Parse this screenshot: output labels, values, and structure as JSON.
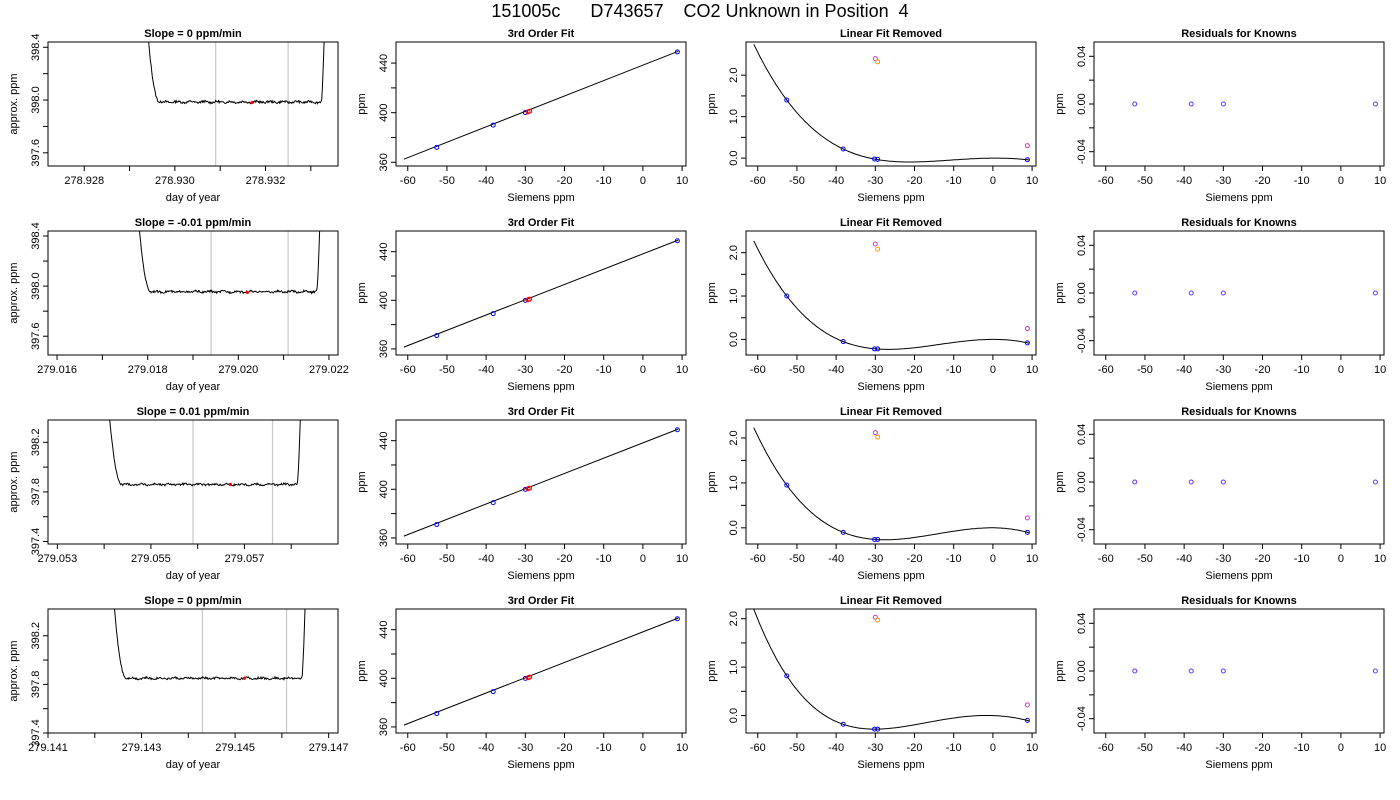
{
  "figure": {
    "title": "151005c      D743657    CO2 Unknown in Position  4"
  },
  "chart_data": [
    {
      "type": "line",
      "title": "Slope =  0  ppm/min",
      "xlabel": "day of year",
      "ylabel": "approx. ppm",
      "xlim": [
        278.9272,
        278.9336
      ],
      "ylim": [
        397.5,
        398.44
      ],
      "xticks": [
        278.928,
        278.93,
        278.932
      ],
      "xtick_labels": [
        "278.928",
        "278.930",
        "278.932"
      ],
      "xtick_minor": [
        278.929,
        278.931,
        278.933
      ],
      "yticks": [
        397.6,
        398.0,
        398.4
      ],
      "ytick_labels": [
        "397.6",
        "398.0",
        "398.4"
      ],
      "ytick_minor": [
        397.8,
        398.2
      ],
      "vlines": [
        278.9309,
        278.9325
      ],
      "trace": {
        "start": 278.9294,
        "end": 278.9333,
        "baseline": 397.985,
        "noise": 0.008,
        "entry_top": 398.5,
        "exit_top": 398.5
      },
      "red_point": {
        "x": 278.9317,
        "y": 397.98
      }
    },
    {
      "type": "scatter",
      "title": "3rd Order Fit",
      "xlabel": "Siemens ppm",
      "ylabel": "ppm",
      "xlim": [
        -63,
        11
      ],
      "ylim": [
        357,
        457
      ],
      "xticks": [
        -60,
        -50,
        -40,
        -30,
        -20,
        -10,
        0,
        10
      ],
      "yticks": [
        360,
        400,
        440
      ],
      "ytick_minor": [
        380,
        420
      ],
      "line": {
        "x": [
          -61,
          9
        ],
        "y": [
          362.5,
          449.5
        ]
      },
      "points": [
        {
          "x": -52.6,
          "y": 372,
          "color": "blue"
        },
        {
          "x": -38.2,
          "y": 390,
          "color": "blue"
        },
        {
          "x": -30,
          "y": 400.1,
          "color": "blue"
        },
        {
          "x": -29.3,
          "y": 400.6,
          "color": "red"
        },
        {
          "x": -28.9,
          "y": 401.2,
          "color": "red"
        },
        {
          "x": 8.8,
          "y": 449,
          "color": "blue"
        }
      ]
    },
    {
      "type": "scatter",
      "title": "Linear Fit Removed",
      "xlabel": "Siemens ppm",
      "ylabel": "ppm",
      "xlim": [
        -63,
        11
      ],
      "ylim": [
        -0.19,
        2.8
      ],
      "xticks": [
        -60,
        -50,
        -40,
        -30,
        -20,
        -10,
        0,
        10
      ],
      "yticks": [
        0.0,
        1.0,
        2.0
      ],
      "ytick_labels": [
        "0.0",
        "1.0",
        "2.0"
      ],
      "ytick_minor": [
        0.5,
        1.5
      ],
      "curve": {
        "a": 0.0,
        "roots": [
          -52.6,
          -38.2,
          -29.9,
          8.8
        ],
        "x": [
          -61,
          9.2
        ],
        "y_at_knowns": [
          1.4,
          0.22,
          -0.03,
          -0.04
        ]
      },
      "points": [
        {
          "x": -52.6,
          "y": 1.4,
          "color": "blue"
        },
        {
          "x": -38.2,
          "y": 0.22,
          "color": "blue"
        },
        {
          "x": -30.2,
          "y": -0.02,
          "color": "blue"
        },
        {
          "x": -29.4,
          "y": -0.03,
          "color": "blue"
        },
        {
          "x": 8.8,
          "y": -0.04,
          "color": "blue"
        },
        {
          "x": -30,
          "y": 2.4,
          "color": "magenta"
        },
        {
          "x": -29.4,
          "y": 2.32,
          "color": "orange"
        },
        {
          "x": 8.8,
          "y": 0.3,
          "color": "magenta"
        }
      ]
    },
    {
      "type": "scatter",
      "title": "Residuals for Knowns",
      "xlabel": "Siemens ppm",
      "ylabel": "ppm",
      "xlim": [
        -63,
        11
      ],
      "ylim": [
        -0.052,
        0.052
      ],
      "xticks": [
        -60,
        -50,
        -40,
        -30,
        -20,
        -10,
        0,
        10
      ],
      "yticks": [
        -0.04,
        0.0,
        0.04
      ],
      "ytick_labels": [
        "-0.04",
        "0.00",
        "0.04"
      ],
      "ytick_minor": [
        -0.02,
        0.02
      ],
      "points": [
        {
          "x": -52.6,
          "y": 0,
          "color": "purple"
        },
        {
          "x": -38.2,
          "y": 0,
          "color": "purple"
        },
        {
          "x": -30,
          "y": 0,
          "color": "purple"
        },
        {
          "x": 8.8,
          "y": 0,
          "color": "purple"
        }
      ]
    },
    {
      "type": "line",
      "title": "Slope =  -0.01  ppm/min",
      "xlabel": "day of year",
      "ylabel": "approx. ppm",
      "xlim": [
        279.0158,
        279.0222
      ],
      "ylim": [
        397.45,
        398.44
      ],
      "xticks": [
        279.016,
        279.018,
        279.02,
        279.022
      ],
      "xtick_labels": [
        "279.016",
        "279.018",
        "279.020",
        "279.022"
      ],
      "xtick_minor": [
        279.017,
        279.019,
        279.021
      ],
      "yticks": [
        397.6,
        398.0,
        398.4
      ],
      "ytick_labels": [
        "397.6",
        "398.0",
        "398.4"
      ],
      "ytick_minor": [
        397.8,
        398.2
      ],
      "vlines": [
        279.0194,
        279.0211
      ],
      "trace": {
        "start": 279.0178,
        "end": 279.0218,
        "baseline": 397.955,
        "noise": 0.008,
        "entry_top": 398.5,
        "exit_top": 398.5
      },
      "red_point": {
        "x": 279.0202,
        "y": 397.95
      }
    },
    {
      "type": "scatter",
      "title": "3rd Order Fit",
      "xlabel": "Siemens ppm",
      "ylabel": "ppm",
      "xlim": [
        -63,
        11
      ],
      "ylim": [
        355,
        457
      ],
      "xticks": [
        -60,
        -50,
        -40,
        -30,
        -20,
        -10,
        0,
        10
      ],
      "yticks": [
        360,
        400,
        440
      ],
      "ytick_minor": [
        380,
        420
      ],
      "line": {
        "x": [
          -61,
          9
        ],
        "y": [
          361.5,
          449.5
        ]
      },
      "points": [
        {
          "x": -52.6,
          "y": 371,
          "color": "blue"
        },
        {
          "x": -38.2,
          "y": 389,
          "color": "blue"
        },
        {
          "x": -30,
          "y": 399.9,
          "color": "blue"
        },
        {
          "x": -29.3,
          "y": 400.4,
          "color": "red"
        },
        {
          "x": -28.9,
          "y": 401,
          "color": "red"
        },
        {
          "x": 8.8,
          "y": 449,
          "color": "blue"
        }
      ]
    },
    {
      "type": "scatter",
      "title": "Linear Fit Removed",
      "xlabel": "Siemens ppm",
      "ylabel": "ppm",
      "xlim": [
        -63,
        11
      ],
      "ylim": [
        -0.36,
        2.5
      ],
      "xticks": [
        -60,
        -50,
        -40,
        -30,
        -20,
        -10,
        0,
        10
      ],
      "yticks": [
        0.0,
        1.0,
        2.0
      ],
      "ytick_labels": [
        "0.0",
        "1.0",
        "2.0"
      ],
      "ytick_minor": [
        0.5,
        1.5
      ],
      "curve": {
        "a": 0.0,
        "roots": [],
        "x": [
          -61,
          9.2
        ],
        "y_at_knowns": [
          1.0,
          -0.05,
          -0.22,
          -0.08
        ]
      },
      "points": [
        {
          "x": -52.6,
          "y": 1.0,
          "color": "blue"
        },
        {
          "x": -38.2,
          "y": -0.05,
          "color": "blue"
        },
        {
          "x": -30.2,
          "y": -0.22,
          "color": "blue"
        },
        {
          "x": -29.4,
          "y": -0.22,
          "color": "blue"
        },
        {
          "x": 8.8,
          "y": -0.08,
          "color": "blue"
        },
        {
          "x": -30,
          "y": 2.2,
          "color": "magenta"
        },
        {
          "x": -29.4,
          "y": 2.08,
          "color": "orange"
        },
        {
          "x": 8.8,
          "y": 0.25,
          "color": "magenta"
        }
      ]
    },
    {
      "type": "scatter",
      "title": "Residuals for Knowns",
      "xlabel": "Siemens ppm",
      "ylabel": "ppm",
      "xlim": [
        -63,
        11
      ],
      "ylim": [
        -0.052,
        0.052
      ],
      "xticks": [
        -60,
        -50,
        -40,
        -30,
        -20,
        -10,
        0,
        10
      ],
      "yticks": [
        -0.04,
        0.0,
        0.04
      ],
      "ytick_labels": [
        "-0.04",
        "0.00",
        "0.04"
      ],
      "ytick_minor": [
        -0.02,
        0.02
      ],
      "points": [
        {
          "x": -52.6,
          "y": 0,
          "color": "purple"
        },
        {
          "x": -38.2,
          "y": 0,
          "color": "purple"
        },
        {
          "x": -30,
          "y": 0,
          "color": "purple"
        },
        {
          "x": 8.8,
          "y": 0,
          "color": "purple"
        }
      ]
    },
    {
      "type": "line",
      "title": "Slope =  0.01  ppm/min",
      "xlabel": "day of year",
      "ylabel": "approx. ppm",
      "xlim": [
        279.0528,
        279.059
      ],
      "ylim": [
        397.38,
        398.38
      ],
      "xticks": [
        279.053,
        279.055,
        279.057
      ],
      "xtick_labels": [
        "279.053",
        "279.055",
        "279.057"
      ],
      "xtick_minor": [
        279.054,
        279.056,
        279.058
      ],
      "yticks": [
        397.4,
        397.8,
        398.2
      ],
      "ytick_labels": [
        "397.4",
        "397.8",
        "398.2"
      ],
      "ytick_minor": [
        397.6,
        398.0
      ],
      "vlines": [
        279.0559,
        279.0576
      ],
      "trace": {
        "start": 279.0541,
        "end": 279.0582,
        "baseline": 397.86,
        "noise": 0.008,
        "entry_top": 398.45,
        "exit_top": 398.45
      },
      "red_point": {
        "x": 279.0567,
        "y": 397.86
      }
    },
    {
      "type": "scatter",
      "title": "3rd Order Fit",
      "xlabel": "Siemens ppm",
      "ylabel": "ppm",
      "xlim": [
        -63,
        11
      ],
      "ylim": [
        355,
        457
      ],
      "xticks": [
        -60,
        -50,
        -40,
        -30,
        -20,
        -10,
        0,
        10
      ],
      "yticks": [
        360,
        400,
        440
      ],
      "ytick_minor": [
        380,
        420
      ],
      "line": {
        "x": [
          -61,
          9
        ],
        "y": [
          361.5,
          449.5
        ]
      },
      "points": [
        {
          "x": -52.6,
          "y": 371,
          "color": "blue"
        },
        {
          "x": -38.2,
          "y": 389,
          "color": "blue"
        },
        {
          "x": -30,
          "y": 399.9,
          "color": "blue"
        },
        {
          "x": -29.3,
          "y": 400.4,
          "color": "red"
        },
        {
          "x": -28.9,
          "y": 401,
          "color": "red"
        },
        {
          "x": 8.8,
          "y": 449,
          "color": "blue"
        }
      ]
    },
    {
      "type": "scatter",
      "title": "Linear Fit Removed",
      "xlabel": "Siemens ppm",
      "ylabel": "ppm",
      "xlim": [
        -63,
        11
      ],
      "ylim": [
        -0.36,
        2.4
      ],
      "xticks": [
        -60,
        -50,
        -40,
        -30,
        -20,
        -10,
        0,
        10
      ],
      "yticks": [
        0.0,
        1.0,
        2.0
      ],
      "ytick_labels": [
        "0.0",
        "1.0",
        "2.0"
      ],
      "ytick_minor": [
        0.5,
        1.5
      ],
      "curve": {
        "a": 0.0,
        "roots": [],
        "x": [
          -61,
          9.2
        ],
        "y_at_knowns": [
          0.95,
          -0.1,
          -0.26,
          -0.1
        ]
      },
      "points": [
        {
          "x": -52.6,
          "y": 0.95,
          "color": "blue"
        },
        {
          "x": -38.2,
          "y": -0.1,
          "color": "blue"
        },
        {
          "x": -30.2,
          "y": -0.26,
          "color": "blue"
        },
        {
          "x": -29.4,
          "y": -0.26,
          "color": "blue"
        },
        {
          "x": 8.8,
          "y": -0.1,
          "color": "blue"
        },
        {
          "x": -30,
          "y": 2.12,
          "color": "magenta"
        },
        {
          "x": -29.4,
          "y": 2.02,
          "color": "orange"
        },
        {
          "x": 8.8,
          "y": 0.22,
          "color": "magenta"
        }
      ]
    },
    {
      "type": "scatter",
      "title": "Residuals for Knowns",
      "xlabel": "Siemens ppm",
      "ylabel": "ppm",
      "xlim": [
        -63,
        11
      ],
      "ylim": [
        -0.052,
        0.052
      ],
      "xticks": [
        -60,
        -50,
        -40,
        -30,
        -20,
        -10,
        0,
        10
      ],
      "yticks": [
        -0.04,
        0.0,
        0.04
      ],
      "ytick_labels": [
        "-0.04",
        "0.00",
        "0.04"
      ],
      "ytick_minor": [
        -0.02,
        0.02
      ],
      "points": [
        {
          "x": -52.6,
          "y": 0,
          "color": "purple"
        },
        {
          "x": -38.2,
          "y": 0,
          "color": "purple"
        },
        {
          "x": -30,
          "y": 0,
          "color": "purple"
        },
        {
          "x": 8.8,
          "y": 0,
          "color": "purple"
        }
      ]
    },
    {
      "type": "line",
      "title": "Slope =  0  ppm/min",
      "xlabel": "day of year",
      "ylabel": "approx. ppm",
      "xlim": [
        279.141,
        279.1472
      ],
      "ylim": [
        397.4,
        398.42
      ],
      "xticks": [
        279.141,
        279.143,
        279.145,
        279.147
      ],
      "xtick_labels": [
        "279.141",
        "279.143",
        "279.145",
        "279.147"
      ],
      "xtick_minor": [
        279.142,
        279.144,
        279.146
      ],
      "yticks": [
        397.4,
        397.8,
        398.2
      ],
      "ytick_labels": [
        "397.4",
        "397.8",
        "398.2"
      ],
      "ytick_minor": [
        397.6,
        398.0
      ],
      "vlines": [
        279.1443,
        279.1461
      ],
      "trace": {
        "start": 279.1424,
        "end": 279.1465,
        "baseline": 397.85,
        "noise": 0.008,
        "entry_top": 398.5,
        "exit_top": 398.5
      },
      "red_point": {
        "x": 279.1452,
        "y": 397.85
      }
    },
    {
      "type": "scatter",
      "title": "3rd Order Fit",
      "xlabel": "Siemens ppm",
      "ylabel": "ppm",
      "xlim": [
        -63,
        11
      ],
      "ylim": [
        355,
        457
      ],
      "xticks": [
        -60,
        -50,
        -40,
        -30,
        -20,
        -10,
        0,
        10
      ],
      "yticks": [
        360,
        400,
        440
      ],
      "ytick_minor": [
        380,
        420
      ],
      "line": {
        "x": [
          -61,
          9
        ],
        "y": [
          361.5,
          449.5
        ]
      },
      "points": [
        {
          "x": -52.6,
          "y": 371,
          "color": "blue"
        },
        {
          "x": -38.2,
          "y": 389,
          "color": "blue"
        },
        {
          "x": -30,
          "y": 399.9,
          "color": "blue"
        },
        {
          "x": -29.3,
          "y": 400.4,
          "color": "red"
        },
        {
          "x": -28.9,
          "y": 401,
          "color": "red"
        },
        {
          "x": 8.8,
          "y": 449,
          "color": "blue"
        }
      ]
    },
    {
      "type": "scatter",
      "title": "Linear Fit Removed",
      "xlabel": "Siemens ppm",
      "ylabel": "ppm",
      "xlim": [
        -63,
        11
      ],
      "ylim": [
        -0.36,
        2.2
      ],
      "xticks": [
        -60,
        -50,
        -40,
        -30,
        -20,
        -10,
        0,
        10
      ],
      "yticks": [
        0.0,
        1.0,
        2.0
      ],
      "ytick_labels": [
        "0.0",
        "1.0",
        "2.0"
      ],
      "ytick_minor": [
        0.5,
        1.5
      ],
      "curve": {
        "a": 0.0,
        "roots": [],
        "x": [
          -61,
          9.2
        ],
        "y_at_knowns": [
          0.82,
          -0.18,
          -0.28,
          -0.1
        ]
      },
      "points": [
        {
          "x": -52.6,
          "y": 0.82,
          "color": "blue"
        },
        {
          "x": -38.2,
          "y": -0.18,
          "color": "blue"
        },
        {
          "x": -30.2,
          "y": -0.28,
          "color": "blue"
        },
        {
          "x": -29.4,
          "y": -0.28,
          "color": "blue"
        },
        {
          "x": 8.8,
          "y": -0.1,
          "color": "blue"
        },
        {
          "x": -30,
          "y": 2.03,
          "color": "magenta"
        },
        {
          "x": -29.4,
          "y": 1.97,
          "color": "orange"
        },
        {
          "x": 8.8,
          "y": 0.22,
          "color": "magenta"
        }
      ]
    },
    {
      "type": "scatter",
      "title": "Residuals for Knowns",
      "xlabel": "Siemens ppm",
      "ylabel": "ppm",
      "xlim": [
        -63,
        11
      ],
      "ylim": [
        -0.052,
        0.052
      ],
      "xticks": [
        -60,
        -50,
        -40,
        -30,
        -20,
        -10,
        0,
        10
      ],
      "yticks": [
        -0.04,
        0.0,
        0.04
      ],
      "ytick_labels": [
        "-0.04",
        "0.00",
        "0.04"
      ],
      "ytick_minor": [
        -0.02,
        0.02
      ],
      "points": [
        {
          "x": -52.6,
          "y": 0,
          "color": "purple"
        },
        {
          "x": -38.2,
          "y": 0,
          "color": "purple"
        },
        {
          "x": -30,
          "y": 0,
          "color": "purple"
        },
        {
          "x": 8.8,
          "y": 0,
          "color": "purple"
        }
      ]
    }
  ],
  "colors": {
    "blue": "#0000ff",
    "red": "#ff0000",
    "magenta": "#cc33cc",
    "orange": "#ff9900",
    "purple": "#6633ff",
    "vline": "#c8c8c8",
    "axis": "#000000"
  }
}
